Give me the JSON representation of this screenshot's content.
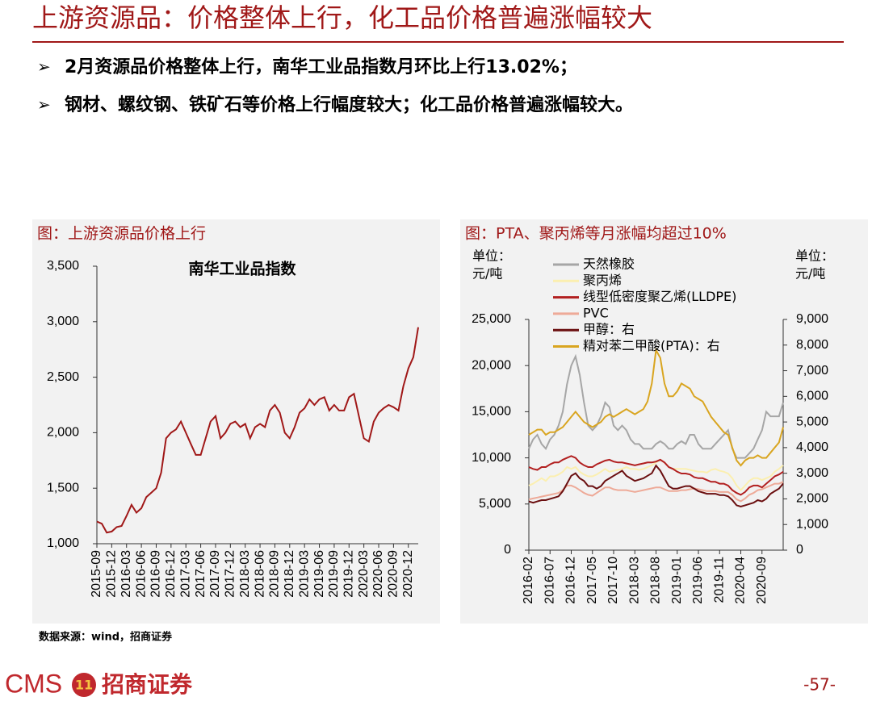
{
  "header": {
    "title": "上游资源品：价格整体上行，化工品价格普遍涨幅较大"
  },
  "bullets": [
    "2月资源品价格整体上行，南华工业品指数月环比上行13.02%；",
    "钢材、螺纹钢、铁矿石等价格上行幅度较大；化工品价格普遍涨幅较大。"
  ],
  "source": "数据来源：wind，招商证券",
  "footer": {
    "logo": "CMS",
    "company": "招商证券",
    "page": "-57-"
  },
  "chart_data": [
    {
      "type": "line",
      "caption": "图：上游资源品价格上行",
      "title": "南华工业品指数",
      "color": "#a01818",
      "categories": [
        "2015-09",
        null,
        null,
        "2015-12",
        null,
        null,
        "2016-03",
        null,
        null,
        "2016-06",
        null,
        null,
        "2016-09",
        null,
        null,
        "2016-12",
        null,
        null,
        "2017-03",
        null,
        null,
        "2017-06",
        null,
        null,
        "2017-09",
        null,
        null,
        "2017-12",
        null,
        null,
        "2018-03",
        null,
        null,
        "2018-06",
        null,
        null,
        "2018-09",
        null,
        null,
        "2018-12",
        null,
        null,
        "2019-03",
        null,
        null,
        "2019-06",
        null,
        null,
        "2019-09",
        null,
        null,
        "2019-12",
        null,
        null,
        "2020-03",
        null,
        null,
        "2020-06",
        null,
        null,
        "2020-09",
        null,
        null,
        "2020-12",
        null,
        null
      ],
      "values": [
        1200,
        1180,
        1100,
        1110,
        1150,
        1160,
        1250,
        1350,
        1280,
        1320,
        1420,
        1460,
        1500,
        1640,
        1950,
        2000,
        2030,
        2100,
        2000,
        1900,
        1800,
        1800,
        1950,
        2100,
        2150,
        1950,
        2000,
        2080,
        2100,
        2050,
        2080,
        1950,
        2050,
        2080,
        2050,
        2200,
        2250,
        2180,
        2000,
        1950,
        2050,
        2180,
        2220,
        2300,
        2250,
        2300,
        2320,
        2200,
        2250,
        2200,
        2200,
        2320,
        2350,
        2150,
        1950,
        1920,
        2100,
        2180,
        2220,
        2250,
        2230,
        2200,
        2420,
        2580,
        2680,
        2950
      ],
      "ylim": [
        1000,
        3500
      ],
      "yticks": [
        {
          "value": 1000,
          "label": "1,000"
        },
        {
          "value": 1500,
          "label": "1,500"
        },
        {
          "value": 2000,
          "label": "2,000"
        },
        {
          "value": 2500,
          "label": "2,500"
        },
        {
          "value": 3000,
          "label": "3,000"
        },
        {
          "value": 3500,
          "label": "3,500"
        }
      ],
      "grid": false
    },
    {
      "type": "line",
      "caption": "图：PTA、聚丙烯等月涨幅均超过10%",
      "y_unit": [
        "单位：",
        "元/吨"
      ],
      "y2_unit": [
        "单位：",
        "元/吨"
      ],
      "categories": [
        "2016-02",
        null,
        null,
        null,
        null,
        "2016-07",
        null,
        null,
        null,
        null,
        "2016-12",
        null,
        null,
        null,
        null,
        "2017-05",
        null,
        null,
        null,
        null,
        "2017-10",
        null,
        null,
        null,
        null,
        "2018-03",
        null,
        null,
        null,
        null,
        "2018-08",
        null,
        null,
        null,
        null,
        "2019-01",
        null,
        null,
        null,
        null,
        "2019-06",
        null,
        null,
        null,
        null,
        "2019-11",
        null,
        null,
        null,
        null,
        "2020-04",
        null,
        null,
        null,
        null,
        "2020-09",
        null,
        null,
        null,
        null,
        null
      ],
      "series": [
        {
          "name": "天然橡胶",
          "color": "#a6a6a6",
          "values": [
            11000,
            12000,
            12500,
            11500,
            11000,
            12000,
            12500,
            13500,
            15000,
            18000,
            20000,
            21000,
            19000,
            16000,
            13500,
            13000,
            13500,
            14500,
            16000,
            15500,
            13500,
            13000,
            13500,
            13000,
            12000,
            11500,
            11500,
            11000,
            11000,
            11000,
            11500,
            11800,
            11500,
            11000,
            11000,
            11500,
            11800,
            11500,
            12500,
            12500,
            11500,
            11000,
            11000,
            11000,
            11500,
            12000,
            12500,
            13000,
            11000,
            10000,
            10000,
            10000,
            10500,
            11000,
            12000,
            13000,
            15000,
            14500,
            14500,
            14500,
            16000
          ]
        },
        {
          "name": "聚丙烯",
          "color": "#fbefb0",
          "values": [
            7000,
            7200,
            7500,
            7800,
            7500,
            8000,
            8000,
            8200,
            8500,
            9000,
            8800,
            9000,
            8500,
            8200,
            8000,
            8000,
            8200,
            8500,
            8800,
            8500,
            8600,
            8700,
            8800,
            9000,
            8800,
            8800,
            8700,
            8800,
            9000,
            9200,
            9500,
            9800,
            9500,
            9000,
            8800,
            8800,
            8800,
            8800,
            8700,
            8600,
            8500,
            8500,
            8400,
            8700,
            8800,
            8600,
            8500,
            8300,
            7800,
            7000,
            6500,
            7000,
            7500,
            7800,
            7800,
            7600,
            7800,
            8000,
            8500,
            8800,
            9200
          ]
        },
        {
          "name": "线型低密度聚乙烯(LLDPE)",
          "color": "#b22020",
          "values": [
            9000,
            8800,
            8700,
            9000,
            9000,
            9300,
            9500,
            9500,
            9800,
            10000,
            10200,
            10000,
            9500,
            9200,
            9000,
            9000,
            9300,
            9500,
            9700,
            9800,
            9600,
            9500,
            9500,
            9400,
            9300,
            9200,
            9300,
            9400,
            9500,
            9500,
            9600,
            9800,
            9500,
            9000,
            8800,
            8500,
            8300,
            8300,
            8200,
            7900,
            7800,
            7800,
            7600,
            7400,
            7400,
            7200,
            7200,
            7000,
            6500,
            6200,
            6000,
            6300,
            6800,
            7000,
            7000,
            6800,
            7200,
            7600,
            8000,
            8200,
            8500
          ]
        },
        {
          "name": "PVC",
          "color": "#eeaa98",
          "values": [
            5500,
            5600,
            5700,
            5800,
            5900,
            6000,
            6100,
            6200,
            6500,
            7000,
            7000,
            6800,
            6500,
            6200,
            6000,
            5900,
            6200,
            6500,
            6800,
            6800,
            6600,
            6500,
            6500,
            6500,
            6400,
            6300,
            6400,
            6500,
            6600,
            6700,
            6800,
            6800,
            6600,
            6400,
            6400,
            6400,
            6500,
            6500,
            6600,
            6700,
            6600,
            6500,
            6400,
            6400,
            6400,
            6300,
            6300,
            6300,
            6000,
            5500,
            5300,
            5600,
            6000,
            6200,
            6500,
            6600,
            6800,
            7000,
            7200,
            7200,
            7400
          ]
        },
        {
          "name": "甲醇：右",
          "color": "#6b0f10",
          "axis": "y2",
          "values": [
            1900,
            1850,
            1900,
            1950,
            1950,
            2000,
            2050,
            2100,
            2300,
            2600,
            2900,
            3000,
            2800,
            2700,
            2500,
            2500,
            2400,
            2500,
            2700,
            2800,
            2900,
            3000,
            3100,
            2900,
            2800,
            2700,
            2750,
            2800,
            2900,
            3000,
            3300,
            3100,
            2800,
            2500,
            2400,
            2400,
            2450,
            2500,
            2500,
            2400,
            2300,
            2250,
            2200,
            2200,
            2200,
            2150,
            2150,
            2100,
            1950,
            1750,
            1700,
            1750,
            1800,
            1850,
            1950,
            1900,
            2000,
            2200,
            2300,
            2400,
            2600
          ]
        },
        {
          "name": "精对苯二甲酸(PTA)：右",
          "color": "#d9a520",
          "axis": "y2",
          "values": [
            4500,
            4600,
            4700,
            4700,
            4500,
            4600,
            4600,
            4700,
            4800,
            5000,
            5200,
            5400,
            5200,
            5000,
            4900,
            4800,
            4900,
            5000,
            5200,
            5300,
            5200,
            5300,
            5400,
            5500,
            5400,
            5300,
            5400,
            5500,
            5800,
            6500,
            7800,
            7500,
            6500,
            6000,
            6000,
            6200,
            6500,
            6400,
            6300,
            6000,
            5900,
            5800,
            5500,
            5200,
            5000,
            4800,
            4600,
            4500,
            4000,
            3500,
            3300,
            3500,
            3600,
            3600,
            3700,
            3600,
            3600,
            3800,
            4000,
            4200,
            4800
          ]
        }
      ],
      "ylim": [
        0,
        25000
      ],
      "yticks": [
        0,
        {
          "value": 5000,
          "label": "5,000"
        },
        {
          "value": 10000,
          "label": "10,000"
        },
        {
          "value": 15000,
          "label": "15,000"
        },
        {
          "value": 20000,
          "label": "20,000"
        },
        {
          "value": 25000,
          "label": "25,000"
        }
      ],
      "y2lim": [
        0,
        9000
      ],
      "y2ticks": [
        0,
        {
          "value": 1000,
          "label": "1,000"
        },
        {
          "value": 2000,
          "label": "2,000"
        },
        {
          "value": 3000,
          "label": "3,000"
        },
        {
          "value": 4000,
          "label": "4,000"
        },
        {
          "value": 5000,
          "label": "5,000"
        },
        {
          "value": 6000,
          "label": "6,000"
        },
        {
          "value": 7000,
          "label": "7,000"
        },
        {
          "value": 8000,
          "label": "8,000"
        },
        {
          "value": 9000,
          "label": "9,000"
        }
      ],
      "grid": false
    }
  ]
}
